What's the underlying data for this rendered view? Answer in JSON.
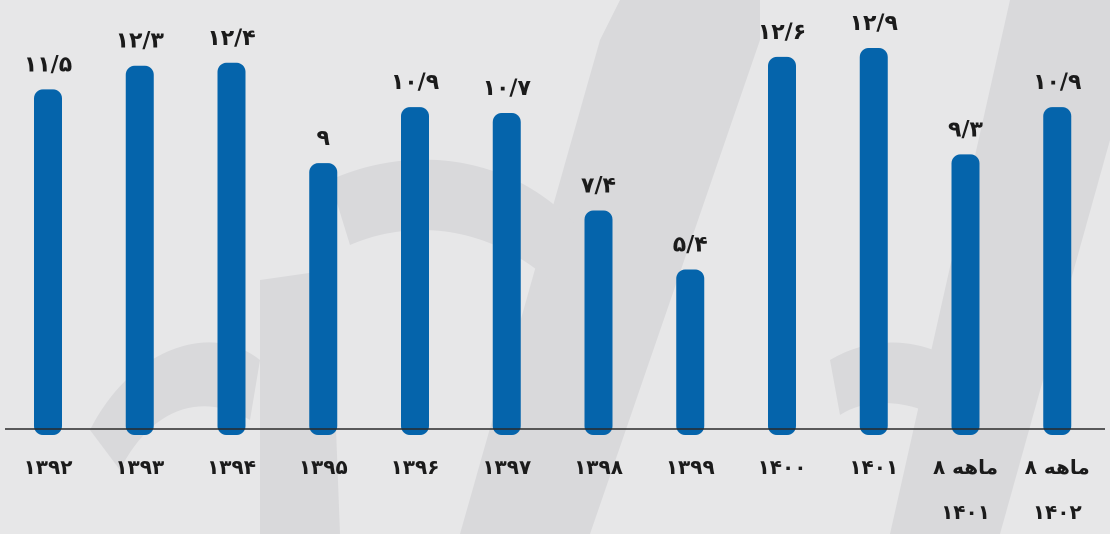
{
  "chart_data": {
    "type": "bar",
    "categories": [
      [
        "۱۳۹۲"
      ],
      [
        "۱۳۹۳"
      ],
      [
        "۱۳۹۴"
      ],
      [
        "۱۳۹۵"
      ],
      [
        "۱۳۹۶"
      ],
      [
        "۱۳۹۷"
      ],
      [
        "۱۳۹۸"
      ],
      [
        "۱۳۹۹"
      ],
      [
        "۱۴۰۰"
      ],
      [
        "۱۴۰۱"
      ],
      [
        "۸ ماهه",
        "۱۴۰۱"
      ],
      [
        "۸ ماهه",
        "۱۴۰۲"
      ]
    ],
    "values": [
      11.5,
      12.3,
      12.4,
      9,
      10.9,
      10.7,
      7.4,
      5.4,
      12.6,
      12.9,
      9.3,
      10.9
    ],
    "value_labels": [
      "۱۱/۵",
      "۱۲/۳",
      "۱۲/۴",
      "۹",
      "۱۰/۹",
      "۱۰/۷",
      "۷/۴",
      "۵/۴",
      "۱۲/۶",
      "۱۲/۹",
      "۹/۳",
      "۱۰/۹"
    ],
    "ylim": [
      0,
      14
    ],
    "grid": false,
    "legend": "none",
    "colors": {
      "bar": "#0564ab",
      "background": "#e7e7e8",
      "watermark": "#d9d9db",
      "text": "#1b1b1b"
    }
  }
}
